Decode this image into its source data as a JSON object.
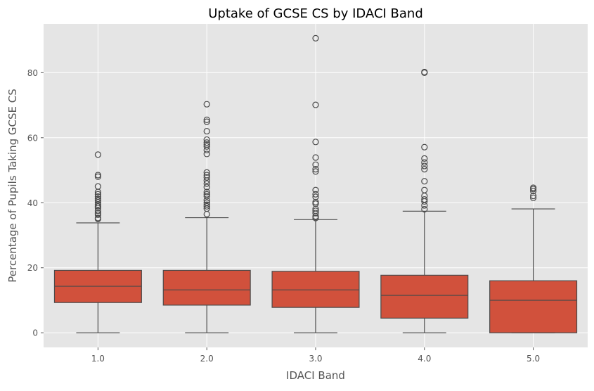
{
  "chart_data": {
    "type": "box",
    "title": "Uptake of GCSE CS by IDACI Band",
    "xlabel": "IDACI Band",
    "ylabel": "Percentage of Pupils Taking GCSE CS",
    "categories": [
      "1.0",
      "2.0",
      "3.0",
      "4.0",
      "5.0"
    ],
    "ylim": [
      -4.5,
      95
    ],
    "yticks": [
      0,
      20,
      40,
      60,
      80
    ],
    "grid": true,
    "legend": "none",
    "boxes": [
      {
        "category": "1.0",
        "whisker_low": 0,
        "q1": 9.3,
        "median": 14.3,
        "q3": 19.2,
        "whisker_high": 33.8,
        "outliers": [
          35.0,
          35.3,
          36.3,
          36.8,
          37.5,
          38.4,
          38.9,
          39.4,
          40.1,
          40.7,
          41.2,
          41.9,
          42.6,
          43.3,
          45.0,
          48.0,
          48.5,
          54.8
        ]
      },
      {
        "category": "2.0",
        "whisker_low": 0,
        "q1": 8.5,
        "median": 13.2,
        "q3": 19.2,
        "whisker_high": 35.4,
        "outliers": [
          36.5,
          38.2,
          38.9,
          39.4,
          40.0,
          40.8,
          42.0,
          42.6,
          43.3,
          44.8,
          45.9,
          46.8,
          47.8,
          48.5,
          49.3,
          55.0,
          56.2,
          57.3,
          57.9,
          58.5,
          59.4,
          62.0,
          64.9,
          65.5,
          70.3
        ]
      },
      {
        "category": "3.0",
        "whisker_low": 0,
        "q1": 7.8,
        "median": 13.2,
        "q3": 18.9,
        "whisker_high": 34.8,
        "outliers": [
          35.3,
          35.8,
          36.8,
          37.5,
          38.1,
          39.7,
          40.2,
          41.8,
          42.6,
          43.9,
          49.6,
          50.3,
          51.7,
          53.9,
          58.7,
          70.1,
          90.6
        ]
      },
      {
        "category": "4.0",
        "whisker_low": 0,
        "q1": 4.5,
        "median": 11.5,
        "q3": 17.7,
        "whisker_high": 37.4,
        "outliers": [
          38.0,
          39.2,
          40.4,
          41.0,
          42.1,
          43.9,
          46.6,
          50.3,
          51.3,
          52.4,
          53.6,
          57.1,
          80.0,
          80.2
        ]
      },
      {
        "category": "5.0",
        "whisker_low": 0,
        "q1": 0,
        "median": 10.0,
        "q3": 16.0,
        "whisker_high": 38.1,
        "outliers": [
          41.5,
          42.1,
          43.6,
          44.2,
          44.6
        ]
      }
    ],
    "colors": {
      "box_fill": "#d1513c",
      "line": "#4a4a4a",
      "plot_bg": "#e5e5e5",
      "grid": "#ffffff",
      "tick_text": "#555555",
      "label_text": "#555555",
      "title_text": "#000000"
    }
  }
}
